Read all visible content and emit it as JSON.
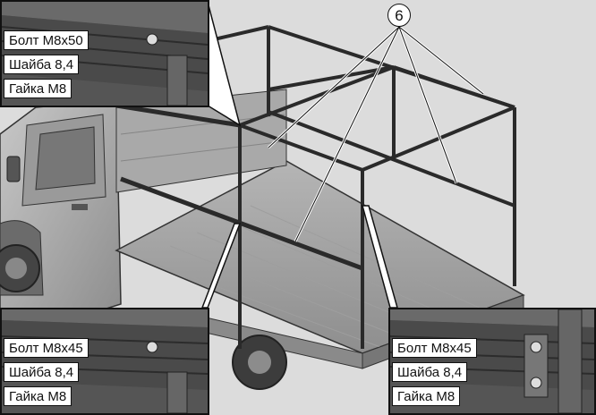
{
  "callout": {
    "number": "6"
  },
  "insets": {
    "top_left": {
      "bolt": "Болт М8х50",
      "washer": "Шайба 8,4",
      "nut": "Гайка М8"
    },
    "bottom_left": {
      "bolt": "Болт М8х45",
      "washer": "Шайба 8,4",
      "nut": "Гайка М8"
    },
    "bottom_right": {
      "bolt": "Болт М8х45",
      "washer": "Шайба 8,4",
      "nut": "Гайка М8"
    }
  }
}
